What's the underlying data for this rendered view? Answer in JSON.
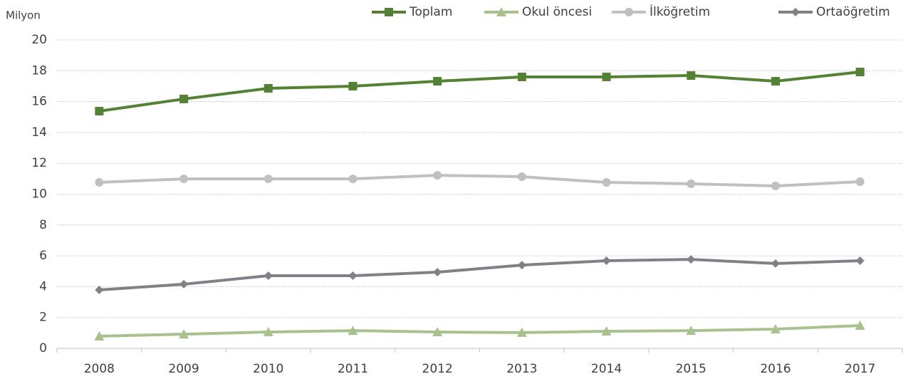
{
  "chart_data": {
    "type": "line",
    "y_label": "Milyon",
    "categories": [
      "2008",
      "2009",
      "2010",
      "2011",
      "2012",
      "2013",
      "2014",
      "2015",
      "2016",
      "2017"
    ],
    "series": [
      {
        "name": "Toplam",
        "color": "#548235",
        "marker": "square",
        "values": [
          15.38,
          16.17,
          16.86,
          17.0,
          17.32,
          17.6,
          17.6,
          17.69,
          17.32,
          17.92
        ]
      },
      {
        "name": "Okul öncesi",
        "color": "#a9c18f",
        "marker": "triangle",
        "values": [
          0.79,
          0.92,
          1.06,
          1.15,
          1.06,
          1.02,
          1.11,
          1.15,
          1.25,
          1.48
        ]
      },
      {
        "name": "İlköğretim",
        "color": "#bfbfc4",
        "marker": "circle",
        "values": [
          10.76,
          10.99,
          10.99,
          10.99,
          11.22,
          11.13,
          10.76,
          10.67,
          10.53,
          10.81
        ]
      },
      {
        "name": "Ortaöğretim",
        "color": "#808087",
        "marker": "diamond",
        "values": [
          3.79,
          4.16,
          4.71,
          4.71,
          4.94,
          5.4,
          5.68,
          5.77,
          5.5,
          5.68
        ]
      }
    ],
    "ylim": [
      0,
      20
    ],
    "yticks": [
      0,
      2,
      4,
      6,
      8,
      10,
      12,
      14,
      16,
      18,
      20
    ],
    "grid": true,
    "legend": "top"
  }
}
